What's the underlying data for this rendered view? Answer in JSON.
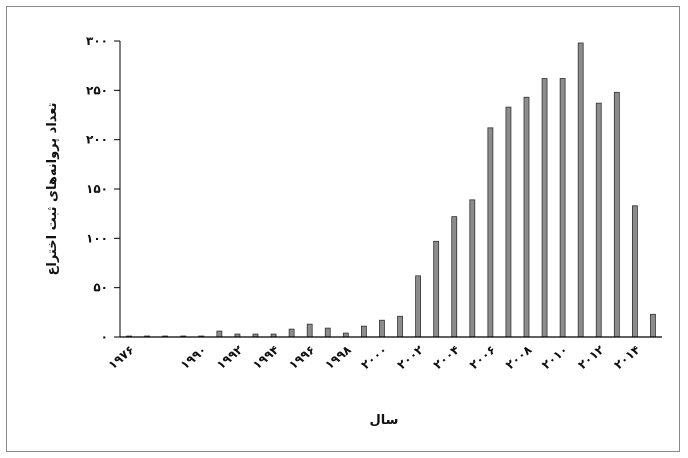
{
  "chart_data": {
    "type": "bar",
    "categories": [
      "۱۹۷۶",
      "",
      "",
      "",
      "۱۹۹۰",
      "",
      "۱۹۹۲",
      "",
      "۱۹۹۴",
      "",
      "۱۹۹۶",
      "",
      "۱۹۹۸",
      "",
      "۲۰۰۰",
      "",
      "۲۰۰۲",
      "",
      "۲۰۰۴",
      "",
      "۲۰۰۶",
      "",
      "۲۰۰۸",
      "",
      "۲۰۱۰",
      "",
      "۲۰۱۲",
      "",
      "۲۰۱۴",
      ""
    ],
    "values": [
      1,
      1,
      1,
      1,
      1,
      6,
      3,
      3,
      3,
      8,
      13,
      9,
      4,
      11,
      17,
      21,
      62,
      97,
      122,
      139,
      212,
      233,
      243,
      262,
      262,
      298,
      237,
      248,
      133,
      23
    ],
    "ylim": [
      0,
      300
    ],
    "yticks": [
      0,
      50,
      100,
      150,
      200,
      250,
      300
    ],
    "ytick_labels": [
      "۰",
      "۵۰",
      "۱۰۰",
      "۱۵۰",
      "۲۰۰",
      "۲۵۰",
      "۳۰۰"
    ],
    "xlabel": "سال",
    "ylabel": "تعداد پروانه‌های ثبت اختراع",
    "grid": false,
    "legend": "none",
    "colors": {
      "bar_fill": "#8c8c8c",
      "bar_edge": "#333333",
      "axis": "#000000"
    }
  }
}
